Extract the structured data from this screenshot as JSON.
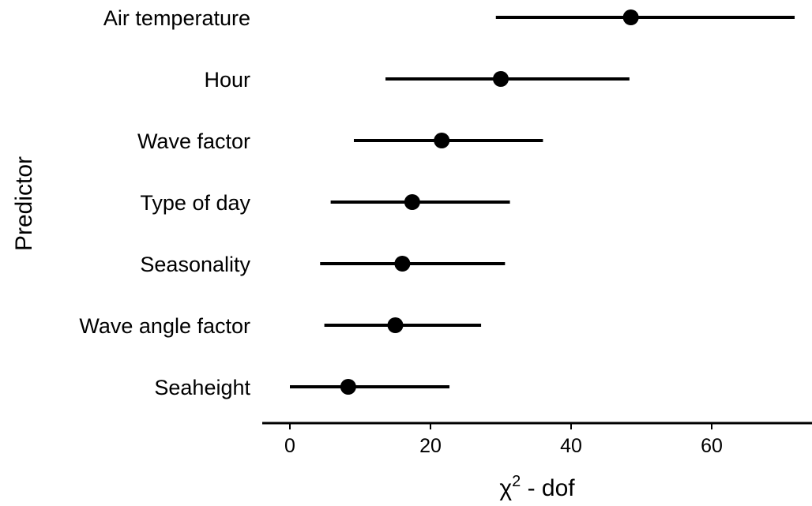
{
  "chart_data": {
    "type": "forest",
    "xlabel": "χ",
    "xlabel_sup": "2",
    "xlabel_suffix": " - dof",
    "ylabel": "Predictor",
    "xlim": [
      -4,
      74
    ],
    "xticks": [
      0,
      20,
      40,
      60
    ],
    "xtick_labels": [
      "0",
      "20",
      "40",
      "60"
    ],
    "points": [
      {
        "label": "Air temperature",
        "x": 48.5,
        "low": 29.3,
        "high": 71.8
      },
      {
        "label": "Hour",
        "x": 30.0,
        "low": 13.6,
        "high": 48.3
      },
      {
        "label": "Wave factor",
        "x": 21.6,
        "low": 9.1,
        "high": 36.0
      },
      {
        "label": "Type of day",
        "x": 17.4,
        "low": 5.8,
        "high": 31.3
      },
      {
        "label": "Seasonality",
        "x": 16.0,
        "low": 4.3,
        "high": 30.6
      },
      {
        "label": "Wave angle factor",
        "x": 15.0,
        "low": 4.9,
        "high": 27.2
      },
      {
        "label": "Seaheight",
        "x": 8.3,
        "low": 0.0,
        "high": 22.7
      }
    ]
  }
}
